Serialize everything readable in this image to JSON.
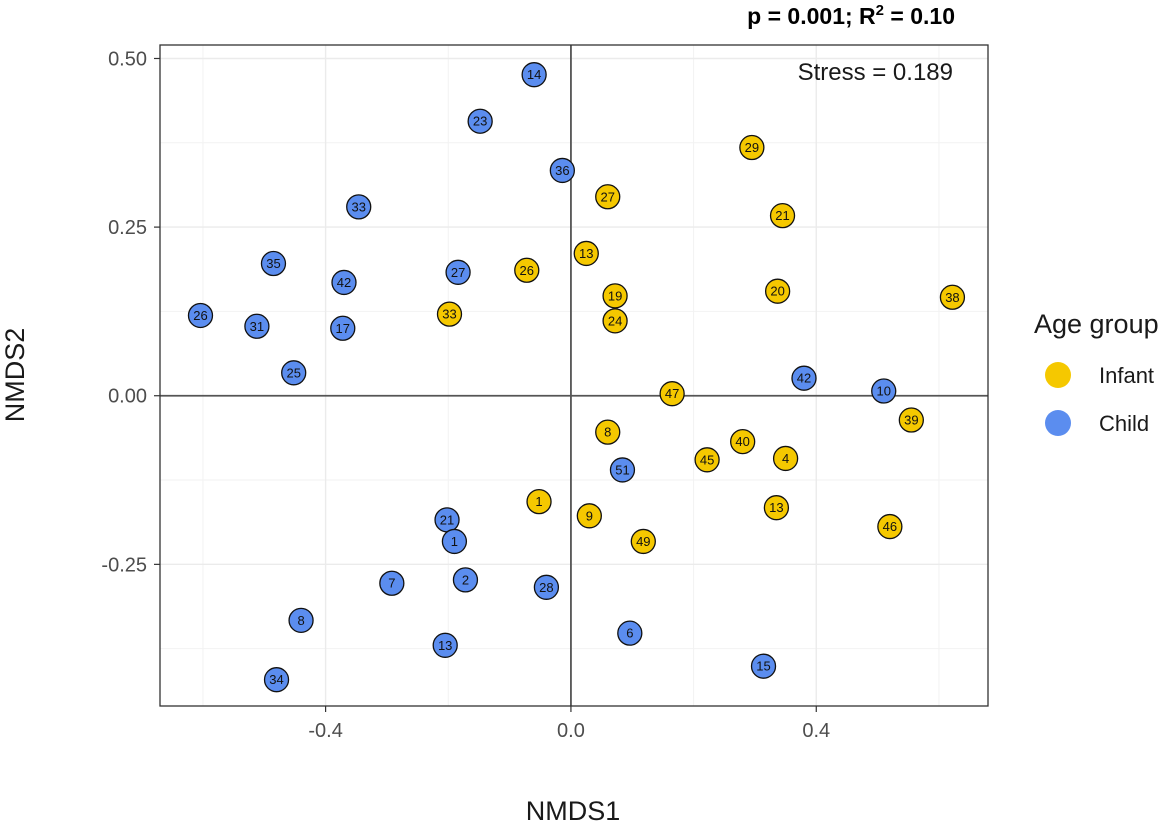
{
  "chart_data": {
    "type": "scatter",
    "stats": {
      "p_text": "p = 0.001;",
      "r2_prefix": "R",
      "r2_sup": "2",
      "r2_value": " = 0.10"
    },
    "stress_text": "Stress = 0.189",
    "xlabel": "NMDS1",
    "ylabel": "NMDS2",
    "xlim": [
      -0.67,
      0.68
    ],
    "ylim": [
      -0.46,
      0.52
    ],
    "x_ticks": [
      -0.4,
      0.0,
      0.4
    ],
    "x_tick_labels": [
      "-0.4",
      "0.0",
      "0.4"
    ],
    "y_ticks": [
      -0.25,
      0.0,
      0.25,
      0.5
    ],
    "y_tick_labels": [
      "-0.25",
      "0.00",
      "0.25",
      "0.50"
    ],
    "reference_lines": {
      "x": 0,
      "y": 0
    },
    "grid": true,
    "legend": {
      "title": "Age group",
      "position": "right"
    },
    "series": [
      {
        "name": "Infant",
        "color": "#F5C800",
        "points": [
          {
            "label": "29",
            "x": 0.295,
            "y": 0.368
          },
          {
            "label": "27",
            "x": 0.06,
            "y": 0.295
          },
          {
            "label": "21",
            "x": 0.345,
            "y": 0.267
          },
          {
            "label": "13",
            "x": 0.025,
            "y": 0.211
          },
          {
            "label": "26",
            "x": -0.072,
            "y": 0.186
          },
          {
            "label": "20",
            "x": 0.337,
            "y": 0.155
          },
          {
            "label": "19",
            "x": 0.072,
            "y": 0.148
          },
          {
            "label": "38",
            "x": 0.622,
            "y": 0.146
          },
          {
            "label": "33",
            "x": -0.198,
            "y": 0.121
          },
          {
            "label": "24",
            "x": 0.072,
            "y": 0.111
          },
          {
            "label": "47",
            "x": 0.165,
            "y": 0.003
          },
          {
            "label": "39",
            "x": 0.555,
            "y": -0.036
          },
          {
            "label": "8",
            "x": 0.06,
            "y": -0.054
          },
          {
            "label": "40",
            "x": 0.28,
            "y": -0.068
          },
          {
            "label": "45",
            "x": 0.222,
            "y": -0.095
          },
          {
            "label": "4",
            "x": 0.35,
            "y": -0.093
          },
          {
            "label": "1",
            "x": -0.052,
            "y": -0.157
          },
          {
            "label": "13",
            "x": 0.335,
            "y": -0.166
          },
          {
            "label": "9",
            "x": 0.03,
            "y": -0.178
          },
          {
            "label": "46",
            "x": 0.52,
            "y": -0.194
          },
          {
            "label": "49",
            "x": 0.118,
            "y": -0.216
          }
        ]
      },
      {
        "name": "Child",
        "color": "#5B8DEF",
        "points": [
          {
            "label": "14",
            "x": -0.06,
            "y": 0.476
          },
          {
            "label": "23",
            "x": -0.148,
            "y": 0.407
          },
          {
            "label": "36",
            "x": -0.014,
            "y": 0.334
          },
          {
            "label": "33",
            "x": -0.346,
            "y": 0.28
          },
          {
            "label": "35",
            "x": -0.485,
            "y": 0.196
          },
          {
            "label": "27",
            "x": -0.184,
            "y": 0.183
          },
          {
            "label": "42",
            "x": -0.37,
            "y": 0.168
          },
          {
            "label": "26",
            "x": -0.604,
            "y": 0.119
          },
          {
            "label": "31",
            "x": -0.512,
            "y": 0.103
          },
          {
            "label": "17",
            "x": -0.372,
            "y": 0.1
          },
          {
            "label": "25",
            "x": -0.452,
            "y": 0.034
          },
          {
            "label": "42",
            "x": 0.38,
            "y": 0.026
          },
          {
            "label": "10",
            "x": 0.51,
            "y": 0.007
          },
          {
            "label": "51",
            "x": 0.084,
            "y": -0.11
          },
          {
            "label": "21",
            "x": -0.202,
            "y": -0.184
          },
          {
            "label": "1",
            "x": -0.19,
            "y": -0.216
          },
          {
            "label": "2",
            "x": -0.172,
            "y": -0.273
          },
          {
            "label": "7",
            "x": -0.292,
            "y": -0.278
          },
          {
            "label": "28",
            "x": -0.04,
            "y": -0.284
          },
          {
            "label": "8",
            "x": -0.44,
            "y": -0.333
          },
          {
            "label": "6",
            "x": 0.096,
            "y": -0.352
          },
          {
            "label": "13",
            "x": -0.205,
            "y": -0.37
          },
          {
            "label": "15",
            "x": 0.314,
            "y": -0.401
          },
          {
            "label": "34",
            "x": -0.48,
            "y": -0.421
          }
        ]
      }
    ]
  }
}
